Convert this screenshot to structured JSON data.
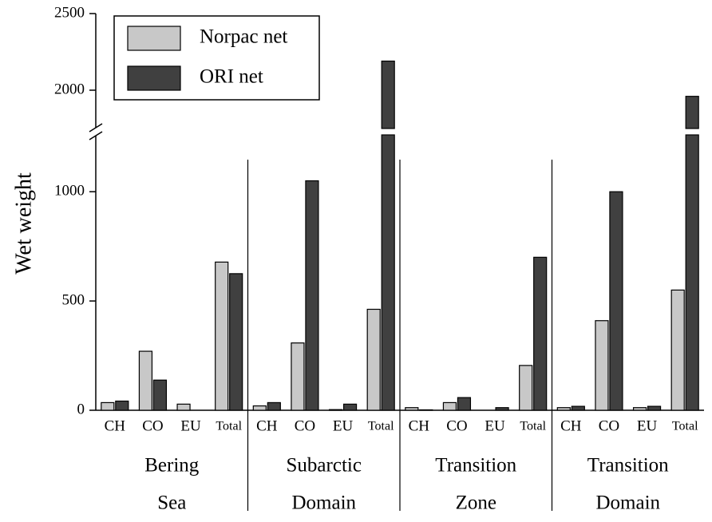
{
  "chart_data": {
    "type": "bar",
    "y_label": "Wet weight",
    "groups": [
      [
        "Bering",
        "Sea"
      ],
      [
        "Subarctic",
        "Domain"
      ],
      [
        "Transition",
        "Zone"
      ],
      [
        "Transition",
        "Domain"
      ]
    ],
    "categories": [
      "CH",
      "CO",
      "EU",
      "Total",
      "CH",
      "CO",
      "EU",
      "Total",
      "CH",
      "CO",
      "EU",
      "Total",
      "CH",
      "CO",
      "EU",
      "Total"
    ],
    "series": [
      {
        "name": "Norpac net",
        "color": "#c8c8c8",
        "values": [
          35,
          270,
          28,
          678,
          20,
          308,
          3,
          462,
          12,
          35,
          0,
          205,
          12,
          410,
          12,
          550
        ]
      },
      {
        "name": "ORI net",
        "color": "#404040",
        "values": [
          42,
          138,
          0,
          625,
          35,
          1050,
          28,
          2190,
          2,
          58,
          12,
          700,
          18,
          1000,
          18,
          1960
        ]
      }
    ],
    "ylim": [
      0,
      2500
    ],
    "y_segments": [
      [
        0,
        1260
      ],
      [
        1750,
        2500
      ]
    ],
    "yticks": [
      0,
      500,
      1000,
      2000,
      2500
    ],
    "legend": "upper left"
  }
}
